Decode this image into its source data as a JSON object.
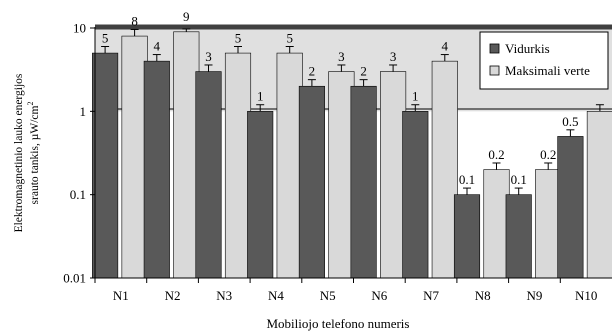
{
  "chart_data": {
    "type": "bar",
    "yscale": "log",
    "ylim": [
      0.01,
      10
    ],
    "y_ticks": [
      "0.01",
      "0.1",
      "1",
      "10"
    ],
    "xlabel": "Mobiliojo telefono numeris",
    "ylabel_line1": "Elektromagnetinio lauko energijos",
    "ylabel_line2": "srauto tankis, µW/cm",
    "ylabel_sup": "2",
    "categories": [
      "N1",
      "N2",
      "N3",
      "N4",
      "N5",
      "N6",
      "N7",
      "N8",
      "N9",
      "N10"
    ],
    "series": [
      {
        "name": "Vidurkis",
        "color": "#595959",
        "values": [
          5,
          4,
          3,
          1,
          2,
          2,
          1,
          0.1,
          0.1,
          0.5
        ],
        "labels": [
          "5",
          "4",
          "3",
          "1",
          "2",
          "2",
          "1",
          "0.1",
          "0.1",
          "0.5"
        ]
      },
      {
        "name": "Maksimali verte",
        "color": "#d9d9d9",
        "values": [
          8,
          9,
          5,
          5,
          3,
          3,
          4,
          0.2,
          0.2,
          1
        ],
        "labels": [
          "8",
          "9",
          "5",
          "5",
          "3",
          "3",
          "4",
          "0.2",
          "0.2",
          ""
        ]
      }
    ],
    "error_bars": true,
    "legend_position": "top-right",
    "plot_background": "#e0e0e0",
    "grid": false
  }
}
